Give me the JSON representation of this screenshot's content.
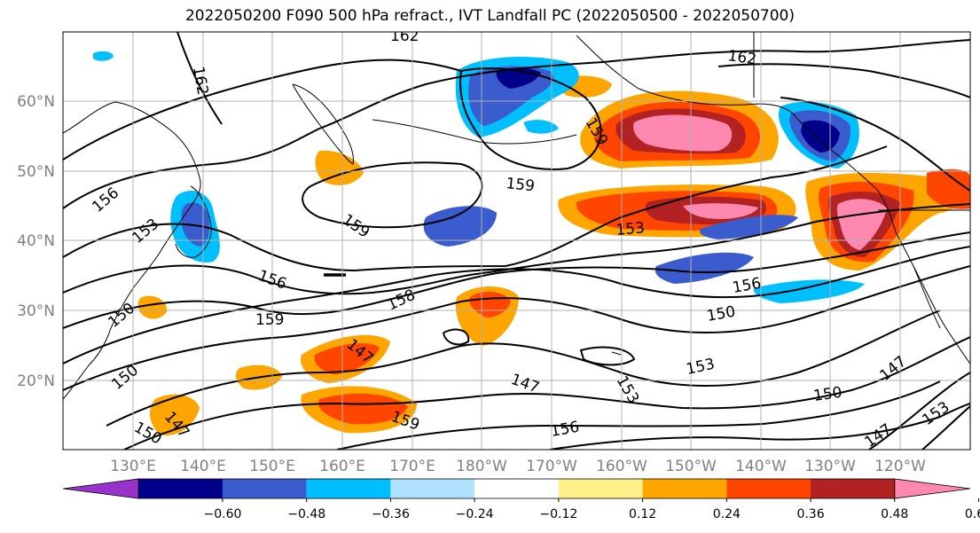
{
  "title": "2022050200 F090 500 hPa refract., IVT Landfall PC (2022050500 - 2022050700)",
  "lat_labels": [
    "60°N",
    "50°N",
    "40°N",
    "30°N",
    "20°N"
  ],
  "lon_labels": [
    "130°E",
    "140°E",
    "150°E",
    "160°E",
    "170°E",
    "180°W",
    "170°W",
    "160°W",
    "150°W",
    "140°W",
    "130°W",
    "120°W"
  ],
  "colorbar": {
    "colors": [
      "#9932cc",
      "#00008b",
      "#3a5ccc",
      "#00bfff",
      "#b0e2ff",
      "#ffffff",
      "#fff08a",
      "#ffa500",
      "#ff4500",
      "#b22222",
      "#ff88b0"
    ],
    "tick_labels": [
      "−0.60",
      "−0.48",
      "−0.36",
      "−0.24",
      "−0.12",
      "0.12",
      "0.24",
      "0.36",
      "0.48",
      "0.60"
    ]
  },
  "contour_labels": [
    "162",
    "162",
    "162",
    "159",
    "159",
    "159",
    "159",
    "159",
    "156",
    "156",
    "156",
    "156",
    "153",
    "153",
    "153",
    "153",
    "150",
    "150",
    "150",
    "150",
    "150",
    "147",
    "147",
    "147",
    "147",
    "147",
    "153",
    "158"
  ],
  "colors": {
    "contour": "#000000",
    "grid": "#b0b0b0",
    "axis_text": "#808080"
  }
}
